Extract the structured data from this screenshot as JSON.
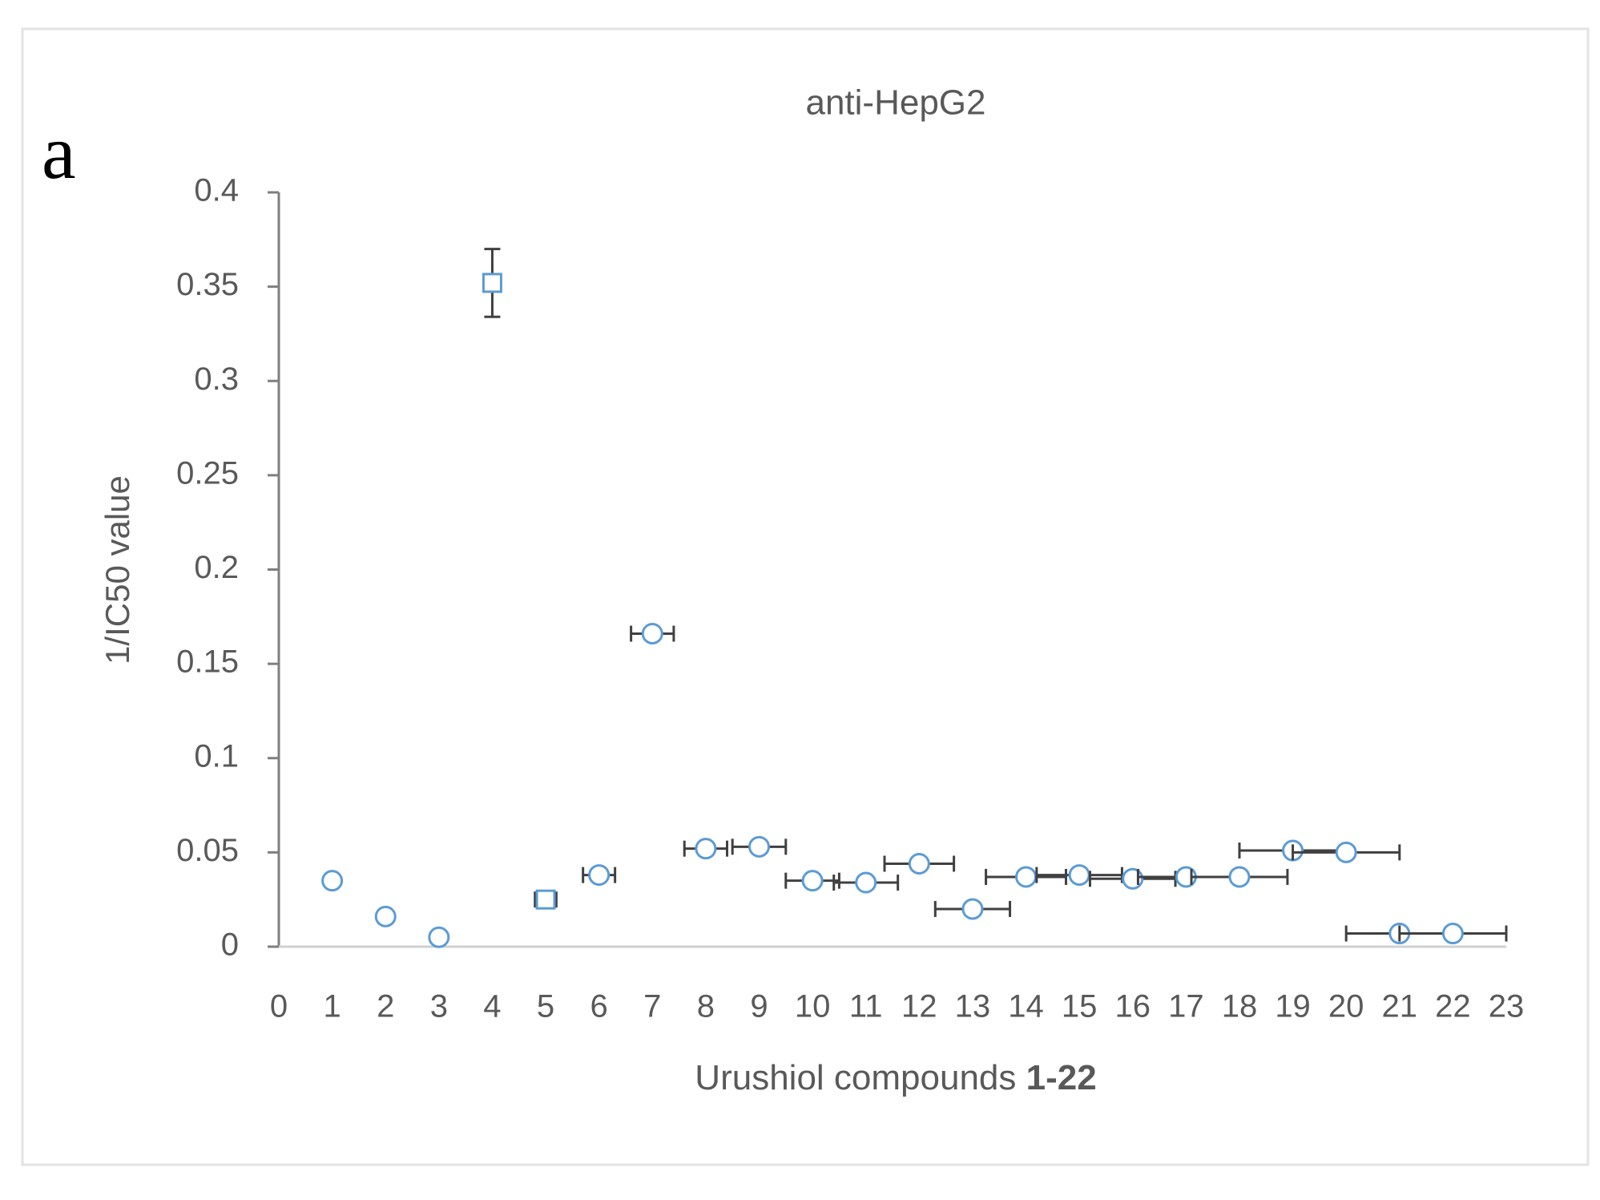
{
  "chart_data": {
    "type": "scatter",
    "title": "anti-HepG2",
    "panel_label": "a",
    "x_label": [
      "Urushiol compounds",
      "1-22"
    ],
    "y_label": "1/IC50 value",
    "xlim": [
      0,
      23
    ],
    "xticks": [
      0,
      1,
      2,
      3,
      4,
      5,
      6,
      7,
      8,
      9,
      10,
      11,
      12,
      13,
      14,
      15,
      16,
      17,
      18,
      19,
      20,
      21,
      22,
      23
    ],
    "ylim": [
      0,
      0.4
    ],
    "yticks": [
      0,
      0.05,
      0.1,
      0.15,
      0.2,
      0.25,
      0.3,
      0.35,
      0.4
    ],
    "series": [
      {
        "color": "#5b9bd5",
        "x": [
          1,
          2,
          3,
          4,
          5,
          6,
          7,
          8,
          9,
          10,
          11,
          12,
          13,
          14,
          15,
          16,
          17,
          18,
          19,
          20,
          21,
          22
        ],
        "values": [
          0.035,
          0.016,
          0.005,
          0.352,
          0.025,
          0.038,
          0.166,
          0.052,
          0.053,
          0.035,
          0.034,
          0.044,
          0.02,
          0.037,
          0.038,
          0.036,
          0.037,
          0.037,
          0.051,
          0.05,
          0.007,
          0.007
        ],
        "y_errors": [
          null,
          null,
          null,
          0.018,
          null,
          null,
          null,
          null,
          null,
          null,
          null,
          null,
          null,
          null,
          null,
          null,
          null,
          null,
          null,
          null,
          null,
          null
        ],
        "x_errors": [
          null,
          null,
          null,
          null,
          0.2,
          0.3,
          0.4,
          0.4,
          0.5,
          0.5,
          0.6,
          0.65,
          0.7,
          0.75,
          0.8,
          0.8,
          0.9,
          0.9,
          1.0,
          1.0,
          1.0,
          1.0
        ],
        "markers": [
          "circle",
          "circle",
          "circle",
          "square",
          "square",
          "circle",
          "circle",
          "circle",
          "circle",
          "circle",
          "circle",
          "circle",
          "circle",
          "circle",
          "circle",
          "circle",
          "circle",
          "circle",
          "circle",
          "circle",
          "circle",
          "circle"
        ]
      }
    ],
    "error_color": "#404040"
  }
}
